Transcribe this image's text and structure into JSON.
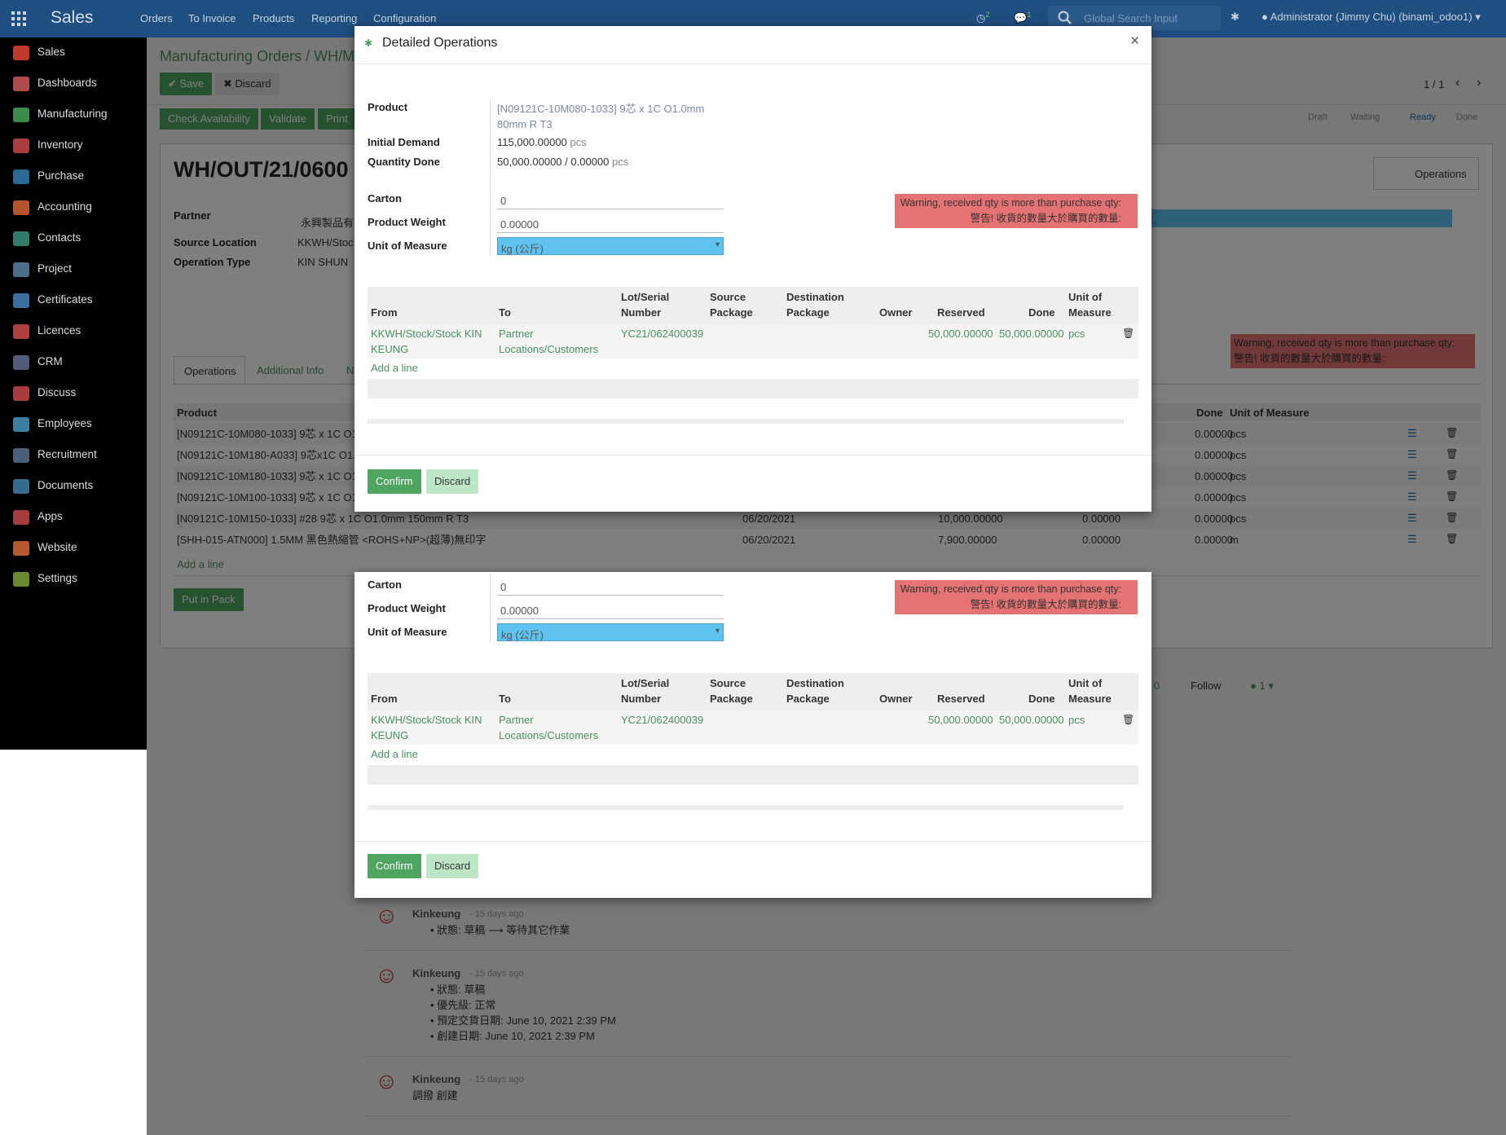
{
  "topbar": {
    "brand": "Sales",
    "menus": [
      "Orders",
      "To Invoice",
      "Products",
      "Reporting",
      "Configuration"
    ],
    "activity_count": "2",
    "message_count": "1",
    "search_placeholder": "Global Search Input",
    "user": "Administrator (Jimmy Chu) (binami_odoo1)"
  },
  "sidebar": {
    "items": [
      {
        "label": "Sales",
        "color": "#c0392b"
      },
      {
        "label": "Dashboards",
        "color": "#b04b4b"
      },
      {
        "label": "Manufacturing",
        "color": "#3d8b4a"
      },
      {
        "label": "Inventory",
        "color": "#a83e3e"
      },
      {
        "label": "Purchase",
        "color": "#2c6a95"
      },
      {
        "label": "Accounting",
        "color": "#b5522f"
      },
      {
        "label": "Contacts",
        "color": "#2f7c6b"
      },
      {
        "label": "Project",
        "color": "#4a6f8a"
      },
      {
        "label": "Certificates",
        "color": "#3c6f9e"
      },
      {
        "label": "Licences",
        "color": "#b04040"
      },
      {
        "label": "CRM",
        "color": "#4f5d79"
      },
      {
        "label": "Discuss",
        "color": "#a83c3c"
      },
      {
        "label": "Employees",
        "color": "#3e7fa1"
      },
      {
        "label": "Recruitment",
        "color": "#4a5f7a"
      },
      {
        "label": "Documents",
        "color": "#356c8e"
      },
      {
        "label": "Apps",
        "color": "#a63d3d"
      },
      {
        "label": "Website",
        "color": "#b55a2e"
      },
      {
        "label": "Settings",
        "color": "#6b8a2e"
      }
    ]
  },
  "page": {
    "breadcrumb_root": "Manufacturing Orders",
    "breadcrumb_sep": "/",
    "breadcrumb_current": "WH/M",
    "save": "Save",
    "discard": "Discard",
    "pager": "1 / 1",
    "check_availability": "Check Availability",
    "validate": "Validate",
    "print": "Print",
    "status_steps": [
      "Draft",
      "Waiting",
      "Ready",
      "Done"
    ],
    "record_name": "WH/OUT/21/0600",
    "operations_button": "Operations",
    "partner_label": "Partner",
    "partner_value": "永興製品有",
    "source_location_label": "Source Location",
    "source_location_value": "KKWH/Stoc",
    "operation_type_label": "Operation Type",
    "operation_type_value": "KIN SHUN",
    "warning_line1": "Warning, received qty is more than purchase qty:",
    "warning_line2": "警告! 收貨的數量大於購買的數量:",
    "tabs": [
      "Operations",
      "Additional Info",
      "N"
    ],
    "table_product_header": "Product",
    "table_done_header": "Done",
    "table_uom_header": "Unit of Measure",
    "rows": [
      {
        "product": "[N09121C-10M080-1033] 9芯 x 1C O1",
        "date": "",
        "qty": "",
        "reserved": "",
        "done": "0.00000",
        "uom": "pcs"
      },
      {
        "product": "[N09121C-10M180-A033] 9芯x1C O1.0",
        "date": "",
        "qty": "",
        "reserved": "",
        "done": "0.00000",
        "uom": "pcs"
      },
      {
        "product": "[N09121C-10M180-1033] 9芯 x 1C O1",
        "date": "",
        "qty": "",
        "reserved": "",
        "done": "0.00000",
        "uom": "pcs"
      },
      {
        "product": "[N09121C-10M100-1033] 9芯 x 1C O1",
        "date": "",
        "qty": "",
        "reserved": "",
        "done": "0.00000",
        "uom": "pcs"
      },
      {
        "product": "[N09121C-10M150-1033] #28 9芯 x 1C O1.0mm 150mm R T3",
        "date": "06/20/2021",
        "qty": "10,000.00000",
        "reserved": "0.00000",
        "done": "0.00000",
        "uom": "pcs"
      },
      {
        "product": "[SHH-015-ATN000] 1.5MM 黑色熱縮管 <ROHS+NP>(超薄)無印字",
        "date": "06/20/2021",
        "qty": "7,900.00000",
        "reserved": "0.00000",
        "done": "0.00000",
        "uom": "m"
      }
    ],
    "add_line": "Add a line",
    "put_in_pack": "Put in Pack",
    "follower_count": "0",
    "follow": "Follow",
    "followers": "1",
    "chatter": [
      {
        "author": "Kinkeung",
        "time": "- 15 days ago",
        "lines": [
          "狀態: 草稿 ⟶ 等待其它作業"
        ]
      },
      {
        "author": "Kinkeung",
        "time": "- 15 days ago",
        "lines": [
          "狀態: 草稿",
          "優先級: 正常",
          "預定交貨日期: June 10, 2021 2:39 PM",
          "創建日期: June 10, 2021 2:39 PM"
        ]
      },
      {
        "author": "Kinkeung",
        "time": "- 15 days ago",
        "plain": "調撥 創建"
      }
    ]
  },
  "dialog": {
    "title": "Detailed Operations",
    "close": "×",
    "product_label": "Product",
    "product_value_line1": "[N09121C-10M080-1033] 9芯 x 1C O1.0mm",
    "product_value_line2": "80mm R T3",
    "initial_demand_label": "Initial Demand",
    "initial_demand_value": "115,000.00000",
    "initial_demand_uom": "pcs",
    "quantity_done_label": "Quantity Done",
    "quantity_done_value": "50,000.00000",
    "quantity_done_sep": "/",
    "quantity_done_reserved": "0.00000",
    "quantity_done_uom": "pcs",
    "carton_label": "Carton",
    "carton_value": "0",
    "product_weight_label": "Product Weight",
    "product_weight_value": "0.00000",
    "uom_label": "Unit of Measure",
    "uom_value": "kg (公斤)",
    "warning_line1": "Warning, received qty is more than purchase qty:",
    "warning_line2": "警告! 收貨的數量大於購買的數量:",
    "headers": {
      "from": "From",
      "to": "To",
      "lot1": "Lot/Serial",
      "lot2": "Number",
      "src1": "Source",
      "src2": "Package",
      "dst1": "Destination",
      "dst2": "Package",
      "owner": "Owner",
      "reserved": "Reserved",
      "done": "Done",
      "uom1": "Unit of",
      "uom2": "Measure"
    },
    "line": {
      "from1": "KKWH/Stock/Stock KIN",
      "from2": "KEUNG",
      "to1": "Partner",
      "to2": "Locations/Customers",
      "lot": "YC21/062400039",
      "reserved": "50,000.00000",
      "done": "50,000.00000",
      "uom": "pcs"
    },
    "add_line": "Add a line",
    "confirm": "Confirm",
    "discard": "Discard"
  }
}
